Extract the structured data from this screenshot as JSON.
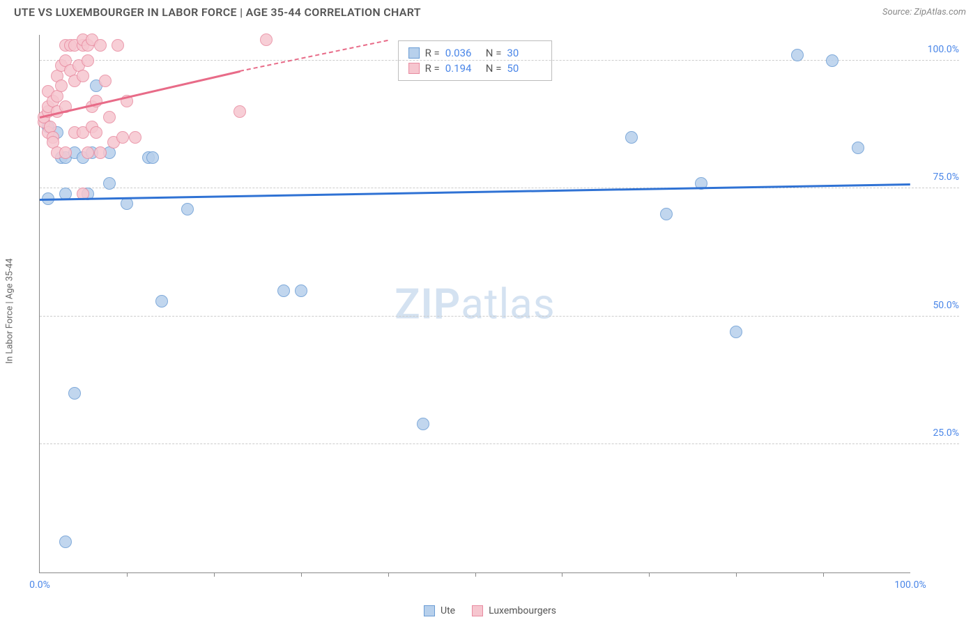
{
  "title": "UTE VS LUXEMBOURGER IN LABOR FORCE | AGE 35-44 CORRELATION CHART",
  "source": "Source: ZipAtlas.com",
  "ylabel": "In Labor Force | Age 35-44",
  "watermark_a": "ZIP",
  "watermark_b": "atlas",
  "chart": {
    "type": "scatter",
    "xlim": [
      0,
      100
    ],
    "ylim": [
      0,
      105
    ],
    "x_axis_labels": [
      {
        "pos": 0,
        "text": "0.0%"
      },
      {
        "pos": 100,
        "text": "100.0%"
      }
    ],
    "xticks_minor": [
      10,
      20,
      30,
      40,
      50,
      60,
      70,
      80,
      90
    ],
    "y_gridlines": [
      25,
      50,
      75,
      100
    ],
    "y_tick_labels": [
      {
        "pos": 25,
        "text": "25.0%"
      },
      {
        "pos": 50,
        "text": "50.0%"
      },
      {
        "pos": 75,
        "text": "75.0%"
      },
      {
        "pos": 100,
        "text": "100.0%"
      }
    ],
    "background_color": "#ffffff",
    "grid_color": "#cccccc",
    "axis_color": "#888888",
    "label_color": "#4a86e8",
    "series": [
      {
        "name": "Ute",
        "marker_fill": "#b7d0ec",
        "marker_stroke": "#6a9cd4",
        "marker_radius": 9,
        "trend_color": "#2f72d4",
        "trend": {
          "x1": 0,
          "y1": 73,
          "x2": 100,
          "y2": 76
        },
        "stats": {
          "R": "0.036",
          "N": "30"
        },
        "points": [
          {
            "x": 1,
            "y": 87
          },
          {
            "x": 2,
            "y": 86
          },
          {
            "x": 2.5,
            "y": 81
          },
          {
            "x": 3,
            "y": 81
          },
          {
            "x": 4,
            "y": 82
          },
          {
            "x": 5,
            "y": 81
          },
          {
            "x": 6,
            "y": 82
          },
          {
            "x": 6.5,
            "y": 95
          },
          {
            "x": 8,
            "y": 82
          },
          {
            "x": 3,
            "y": 74
          },
          {
            "x": 5.5,
            "y": 74
          },
          {
            "x": 8,
            "y": 76
          },
          {
            "x": 10,
            "y": 72
          },
          {
            "x": 12.5,
            "y": 81
          },
          {
            "x": 13,
            "y": 81
          },
          {
            "x": 17,
            "y": 71
          },
          {
            "x": 1,
            "y": 73
          },
          {
            "x": 4,
            "y": 35
          },
          {
            "x": 3,
            "y": 6
          },
          {
            "x": 14,
            "y": 53
          },
          {
            "x": 28,
            "y": 55
          },
          {
            "x": 30,
            "y": 55
          },
          {
            "x": 44,
            "y": 29
          },
          {
            "x": 68,
            "y": 85
          },
          {
            "x": 72,
            "y": 70
          },
          {
            "x": 76,
            "y": 76
          },
          {
            "x": 80,
            "y": 47
          },
          {
            "x": 87,
            "y": 101
          },
          {
            "x": 94,
            "y": 83
          },
          {
            "x": 91,
            "y": 100
          }
        ]
      },
      {
        "name": "Luxembourgers",
        "marker_fill": "#f6c6cf",
        "marker_stroke": "#e88ba0",
        "marker_radius": 9,
        "trend_color": "#e86b88",
        "trend": {
          "x1": 0,
          "y1": 89,
          "x2": 23,
          "y2": 98
        },
        "trend_dashed": {
          "x1": 23,
          "y1": 98,
          "x2": 40,
          "y2": 104
        },
        "stats": {
          "R": "0.194",
          "N": "50"
        },
        "points": [
          {
            "x": 0.5,
            "y": 88
          },
          {
            "x": 0.5,
            "y": 89
          },
          {
            "x": 1,
            "y": 90
          },
          {
            "x": 1,
            "y": 91
          },
          {
            "x": 1,
            "y": 94
          },
          {
            "x": 1,
            "y": 86
          },
          {
            "x": 1.2,
            "y": 87
          },
          {
            "x": 1.5,
            "y": 92
          },
          {
            "x": 1.5,
            "y": 85
          },
          {
            "x": 1.5,
            "y": 84
          },
          {
            "x": 2,
            "y": 90
          },
          {
            "x": 2,
            "y": 93
          },
          {
            "x": 2,
            "y": 97
          },
          {
            "x": 2,
            "y": 82
          },
          {
            "x": 2.5,
            "y": 95
          },
          {
            "x": 2.5,
            "y": 99
          },
          {
            "x": 3,
            "y": 91
          },
          {
            "x": 3,
            "y": 103
          },
          {
            "x": 3,
            "y": 100
          },
          {
            "x": 3,
            "y": 82
          },
          {
            "x": 3.5,
            "y": 98
          },
          {
            "x": 3.5,
            "y": 103
          },
          {
            "x": 4,
            "y": 86
          },
          {
            "x": 4,
            "y": 96
          },
          {
            "x": 4,
            "y": 103
          },
          {
            "x": 4.5,
            "y": 99
          },
          {
            "x": 5,
            "y": 86
          },
          {
            "x": 5,
            "y": 97
          },
          {
            "x": 5,
            "y": 103
          },
          {
            "x": 5,
            "y": 104
          },
          {
            "x": 5,
            "y": 74
          },
          {
            "x": 5.5,
            "y": 103
          },
          {
            "x": 5.5,
            "y": 100
          },
          {
            "x": 5.5,
            "y": 82
          },
          {
            "x": 6,
            "y": 91
          },
          {
            "x": 6,
            "y": 87
          },
          {
            "x": 6,
            "y": 104
          },
          {
            "x": 6.5,
            "y": 86
          },
          {
            "x": 6.5,
            "y": 92
          },
          {
            "x": 7,
            "y": 82
          },
          {
            "x": 7,
            "y": 103
          },
          {
            "x": 7.5,
            "y": 96
          },
          {
            "x": 8,
            "y": 89
          },
          {
            "x": 8.5,
            "y": 84
          },
          {
            "x": 9,
            "y": 103
          },
          {
            "x": 9.5,
            "y": 85
          },
          {
            "x": 10,
            "y": 92
          },
          {
            "x": 11,
            "y": 85
          },
          {
            "x": 23,
            "y": 90
          },
          {
            "x": 26,
            "y": 104
          }
        ]
      }
    ]
  },
  "bottom_legend": [
    {
      "label": "Ute",
      "fill": "#b7d0ec",
      "stroke": "#6a9cd4"
    },
    {
      "label": "Luxembourgers",
      "fill": "#f6c6cf",
      "stroke": "#e88ba0"
    }
  ]
}
